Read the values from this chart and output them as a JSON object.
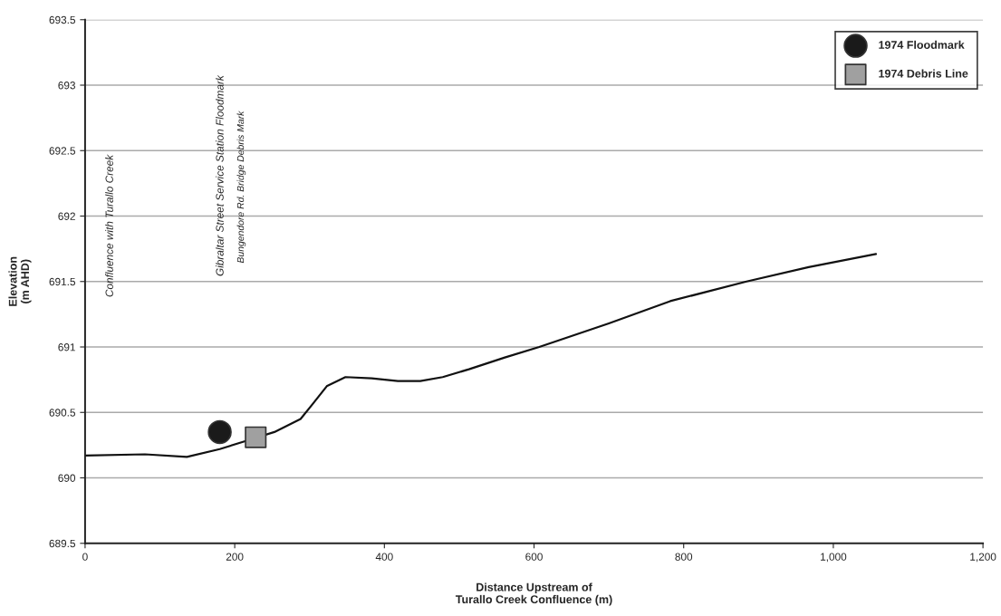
{
  "chart_data": {
    "type": "line",
    "xlabel": "Distance Upstream of\nTurallo Creek Confluence (m)",
    "ylabel": "Elevation\n(m AHD)",
    "xlim": [
      0,
      1200
    ],
    "ylim": [
      689.5,
      693.5
    ],
    "xticks": [
      0,
      200,
      400,
      600,
      800,
      {
        "value": 1000,
        "label": "1,000"
      },
      {
        "value": 1200,
        "label": "1,200"
      }
    ],
    "yticks": [
      689.5,
      690,
      690.5,
      691,
      691.5,
      692,
      692.5,
      693,
      693.5
    ],
    "grid": "y",
    "legend": "top right",
    "series": [
      {
        "color": "#111111",
        "marker": "none",
        "x": [
          0,
          80,
          136,
          180,
          214,
          253,
          288,
          305,
          323,
          348,
          383,
          418,
          448,
          478,
          513,
          561,
          607,
          700,
          782,
          884,
          967,
          1057
        ],
        "values": [
          690.17,
          690.18,
          690.16,
          690.22,
          690.28,
          690.35,
          690.45,
          690.57,
          690.7,
          690.77,
          690.76,
          690.74,
          690.74,
          690.77,
          690.83,
          690.92,
          691.0,
          691.18,
          691.35,
          691.5,
          691.61,
          691.71
        ]
      },
      {
        "type": "scatter",
        "name": "1974 Floodmark",
        "color": "#1a1a1a",
        "marker": "circle",
        "x": [
          180
        ],
        "values": [
          690.35
        ]
      },
      {
        "type": "scatter",
        "name": "1974 Debris Line",
        "color": "#a0a0a0",
        "marker": "square",
        "x": [
          228
        ],
        "values": [
          690.31
        ]
      }
    ],
    "annotations": [
      "Confluence with Turallo Creek",
      "Gibraltar Street Service Station Floodmark",
      "Bungendore Rd. Bridge Debris Mark"
    ]
  }
}
